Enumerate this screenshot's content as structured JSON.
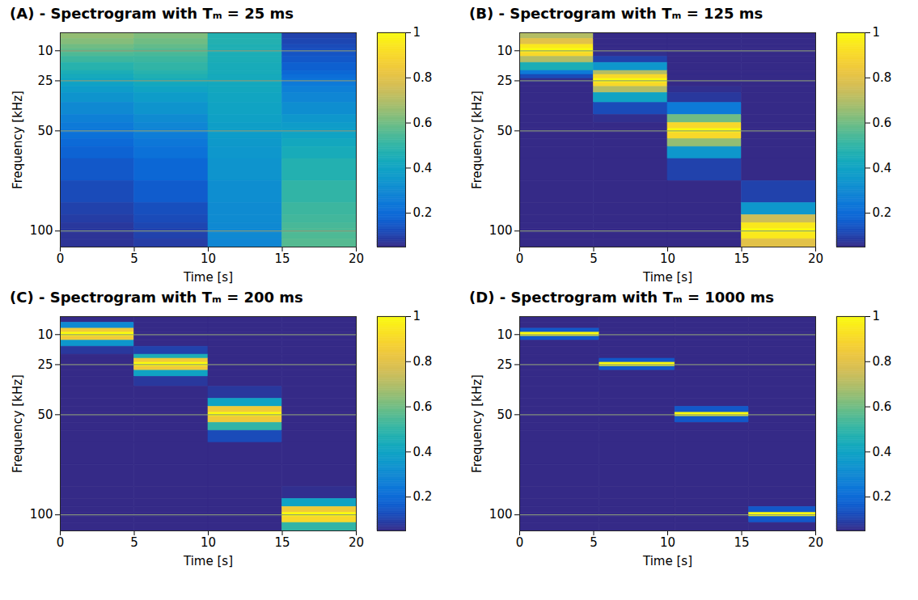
{
  "chart_data": [
    {
      "type": "heatmap",
      "title": "(A) - Spectrogram with Tₘ = 25 ms",
      "x_label": "Time [s]",
      "y_label": "Frequency [kHz]",
      "xlim": [
        0,
        20
      ],
      "xticks": [
        0,
        5,
        10,
        15,
        20
      ],
      "ylim": [
        108,
        1
      ],
      "yticks": [
        10,
        25,
        50,
        100
      ],
      "grid": "y",
      "x_edges": [
        0,
        5,
        10,
        15,
        20
      ],
      "y_edges": [
        1,
        4,
        7,
        9,
        11,
        13,
        16,
        20,
        22,
        24,
        26,
        28,
        31,
        36,
        42,
        46,
        49,
        51,
        54,
        58,
        64,
        75,
        86,
        92,
        96,
        99,
        101,
        104,
        108
      ],
      "cells": [
        [
          0.65,
          0.62,
          0.47,
          0.1
        ],
        [
          0.63,
          0.6,
          0.47,
          0.11
        ],
        [
          0.6,
          0.58,
          0.46,
          0.12
        ],
        [
          0.58,
          0.56,
          0.46,
          0.13
        ],
        [
          0.55,
          0.54,
          0.45,
          0.14
        ],
        [
          0.52,
          0.52,
          0.45,
          0.15
        ],
        [
          0.48,
          0.5,
          0.44,
          0.17
        ],
        [
          0.45,
          0.48,
          0.44,
          0.19
        ],
        [
          0.43,
          0.46,
          0.43,
          0.21
        ],
        [
          0.41,
          0.44,
          0.43,
          0.23
        ],
        [
          0.39,
          0.42,
          0.42,
          0.25
        ],
        [
          0.37,
          0.4,
          0.42,
          0.27
        ],
        [
          0.34,
          0.37,
          0.41,
          0.29
        ],
        [
          0.3,
          0.34,
          0.4,
          0.32
        ],
        [
          0.27,
          0.31,
          0.39,
          0.35
        ],
        [
          0.25,
          0.29,
          0.38,
          0.37
        ],
        [
          0.24,
          0.28,
          0.38,
          0.38
        ],
        [
          0.22,
          0.26,
          0.37,
          0.4
        ],
        [
          0.2,
          0.24,
          0.36,
          0.42
        ],
        [
          0.18,
          0.22,
          0.35,
          0.44
        ],
        [
          0.15,
          0.19,
          0.34,
          0.47
        ],
        [
          0.12,
          0.16,
          0.32,
          0.5
        ],
        [
          0.1,
          0.13,
          0.31,
          0.52
        ],
        [
          0.09,
          0.12,
          0.31,
          0.53
        ],
        [
          0.08,
          0.11,
          0.3,
          0.54
        ],
        [
          0.08,
          0.1,
          0.3,
          0.55
        ],
        [
          0.07,
          0.1,
          0.3,
          0.55
        ],
        [
          0.07,
          0.09,
          0.29,
          0.56
        ]
      ],
      "clim": [
        0.05,
        1
      ],
      "cticks": [
        0.2,
        0.4,
        0.6,
        0.8,
        1
      ]
    },
    {
      "type": "heatmap",
      "title": "(B) - Spectrogram with Tₘ = 125 ms",
      "x_label": "Time [s]",
      "y_label": "Frequency [kHz]",
      "xlim": [
        0,
        20
      ],
      "xticks": [
        0,
        5,
        10,
        15,
        20
      ],
      "ylim": [
        108,
        1
      ],
      "yticks": [
        10,
        25,
        50,
        100
      ],
      "grid": "y",
      "x_edges": [
        0,
        5,
        10,
        15,
        20
      ],
      "y_edges": [
        1,
        4,
        7,
        9,
        11,
        13,
        16,
        20,
        22,
        24,
        26,
        28,
        31,
        36,
        42,
        46,
        49,
        51,
        54,
        58,
        64,
        75,
        86,
        92,
        96,
        99,
        101,
        104,
        108
      ],
      "cells": [
        [
          0.7,
          0.05,
          0.05,
          0.05
        ],
        [
          0.8,
          0.05,
          0.05,
          0.05
        ],
        [
          0.95,
          0.05,
          0.05,
          0.05
        ],
        [
          1,
          0.05,
          0.05,
          0.05
        ],
        [
          0.9,
          0.06,
          0.05,
          0.05
        ],
        [
          0.7,
          0.1,
          0.05,
          0.05
        ],
        [
          0.45,
          0.35,
          0.05,
          0.05
        ],
        [
          0.25,
          0.7,
          0.05,
          0.05
        ],
        [
          0.12,
          0.9,
          0.05,
          0.05
        ],
        [
          0.06,
          1,
          0.05,
          0.05
        ],
        [
          0.05,
          0.9,
          0.05,
          0.05
        ],
        [
          0.05,
          0.7,
          0.06,
          0.05
        ],
        [
          0.05,
          0.4,
          0.08,
          0.05
        ],
        [
          0.05,
          0.12,
          0.25,
          0.05
        ],
        [
          0.05,
          0.06,
          0.6,
          0.05
        ],
        [
          0.05,
          0.05,
          0.9,
          0.05
        ],
        [
          0.05,
          0.05,
          1,
          0.05
        ],
        [
          0.05,
          0.05,
          0.9,
          0.05
        ],
        [
          0.05,
          0.05,
          0.65,
          0.05
        ],
        [
          0.05,
          0.05,
          0.35,
          0.05
        ],
        [
          0.05,
          0.05,
          0.1,
          0.05
        ],
        [
          0.05,
          0.05,
          0.05,
          0.1
        ],
        [
          0.05,
          0.05,
          0.05,
          0.35
        ],
        [
          0.05,
          0.05,
          0.05,
          0.75
        ],
        [
          0.05,
          0.05,
          0.05,
          0.95
        ],
        [
          0.05,
          0.05,
          0.05,
          1
        ],
        [
          0.05,
          0.05,
          0.05,
          0.95
        ],
        [
          0.05,
          0.05,
          0.05,
          0.8
        ]
      ],
      "clim": [
        0.05,
        1
      ],
      "cticks": [
        0.2,
        0.4,
        0.6,
        0.8,
        1
      ]
    },
    {
      "type": "heatmap",
      "title": "(C) - Spectrogram with Tₘ = 200 ms",
      "x_label": "Time [s]",
      "y_label": "Frequency [kHz]",
      "xlim": [
        0,
        20
      ],
      "xticks": [
        0,
        5,
        10,
        15,
        20
      ],
      "ylim": [
        108,
        1
      ],
      "yticks": [
        10,
        25,
        50,
        100
      ],
      "grid": "y",
      "x_edges": [
        0,
        5,
        10,
        15,
        20
      ],
      "y_edges": [
        1,
        4,
        7,
        9,
        11,
        13,
        16,
        20,
        22,
        24,
        26,
        28,
        31,
        36,
        42,
        46,
        49,
        51,
        54,
        58,
        64,
        75,
        86,
        92,
        96,
        99,
        101,
        104,
        108
      ],
      "cells": [
        [
          0.05,
          0.05,
          0.05,
          0.05
        ],
        [
          0.3,
          0.05,
          0.05,
          0.05
        ],
        [
          0.85,
          0.05,
          0.05,
          0.05
        ],
        [
          1,
          0.05,
          0.05,
          0.05
        ],
        [
          0.85,
          0.05,
          0.05,
          0.05
        ],
        [
          0.35,
          0.05,
          0.05,
          0.05
        ],
        [
          0.08,
          0.1,
          0.05,
          0.05
        ],
        [
          0.05,
          0.45,
          0.05,
          0.05
        ],
        [
          0.05,
          0.85,
          0.05,
          0.05
        ],
        [
          0.05,
          1,
          0.05,
          0.05
        ],
        [
          0.05,
          0.85,
          0.05,
          0.05
        ],
        [
          0.05,
          0.4,
          0.05,
          0.05
        ],
        [
          0.05,
          0.08,
          0.05,
          0.05
        ],
        [
          0.05,
          0.05,
          0.08,
          0.05
        ],
        [
          0.05,
          0.05,
          0.4,
          0.05
        ],
        [
          0.05,
          0.05,
          0.85,
          0.05
        ],
        [
          0.05,
          0.05,
          1,
          0.05
        ],
        [
          0.05,
          0.05,
          0.85,
          0.05
        ],
        [
          0.05,
          0.05,
          0.5,
          0.05
        ],
        [
          0.05,
          0.05,
          0.12,
          0.05
        ],
        [
          0.05,
          0.05,
          0.05,
          0.05
        ],
        [
          0.05,
          0.05,
          0.05,
          0.05
        ],
        [
          0.05,
          0.05,
          0.05,
          0.06
        ],
        [
          0.05,
          0.05,
          0.05,
          0.4
        ],
        [
          0.05,
          0.05,
          0.05,
          0.85
        ],
        [
          0.05,
          0.05,
          0.05,
          1
        ],
        [
          0.05,
          0.05,
          0.05,
          0.9
        ],
        [
          0.05,
          0.05,
          0.05,
          0.5
        ]
      ],
      "clim": [
        0.05,
        1
      ],
      "cticks": [
        0.2,
        0.4,
        0.6,
        0.8,
        1
      ]
    },
    {
      "type": "heatmap",
      "title": "(D) - Spectrogram with Tₘ = 1000 ms",
      "x_label": "Time [s]",
      "y_label": "Frequency [kHz]",
      "xlim": [
        0,
        20
      ],
      "xticks": [
        0,
        5,
        10,
        15,
        20
      ],
      "ylim": [
        108,
        1
      ],
      "yticks": [
        10,
        25,
        50,
        100
      ],
      "grid": "y",
      "x_edges": [
        0,
        5.4,
        10.5,
        15.5,
        20
      ],
      "y_edges": [
        1,
        4,
        7,
        9,
        11,
        13,
        16,
        20,
        22,
        24,
        26,
        28,
        31,
        36,
        42,
        46,
        49,
        51,
        54,
        58,
        64,
        75,
        86,
        92,
        96,
        99,
        101,
        104,
        108
      ],
      "cells": [
        [
          0.05,
          0.05,
          0.05,
          0.05
        ],
        [
          0.05,
          0.05,
          0.05,
          0.05
        ],
        [
          0.15,
          0.05,
          0.05,
          0.05
        ],
        [
          1,
          0.05,
          0.05,
          0.05
        ],
        [
          0.15,
          0.05,
          0.05,
          0.05
        ],
        [
          0.05,
          0.05,
          0.05,
          0.05
        ],
        [
          0.05,
          0.05,
          0.05,
          0.05
        ],
        [
          0.05,
          0.05,
          0.05,
          0.05
        ],
        [
          0.05,
          0.15,
          0.05,
          0.05
        ],
        [
          0.05,
          1,
          0.05,
          0.05
        ],
        [
          0.05,
          0.15,
          0.05,
          0.05
        ],
        [
          0.05,
          0.05,
          0.05,
          0.05
        ],
        [
          0.05,
          0.05,
          0.05,
          0.05
        ],
        [
          0.05,
          0.05,
          0.05,
          0.05
        ],
        [
          0.05,
          0.05,
          0.05,
          0.05
        ],
        [
          0.05,
          0.05,
          0.15,
          0.05
        ],
        [
          0.05,
          0.05,
          1,
          0.05
        ],
        [
          0.05,
          0.05,
          0.15,
          0.05
        ],
        [
          0.05,
          0.05,
          0.05,
          0.05
        ],
        [
          0.05,
          0.05,
          0.05,
          0.05
        ],
        [
          0.05,
          0.05,
          0.05,
          0.05
        ],
        [
          0.05,
          0.05,
          0.05,
          0.05
        ],
        [
          0.05,
          0.05,
          0.05,
          0.05
        ],
        [
          0.05,
          0.05,
          0.05,
          0.05
        ],
        [
          0.05,
          0.05,
          0.05,
          0.15
        ],
        [
          0.05,
          0.05,
          0.05,
          1
        ],
        [
          0.05,
          0.05,
          0.05,
          0.15
        ],
        [
          0.05,
          0.05,
          0.05,
          0.05
        ]
      ],
      "clim": [
        0.05,
        1
      ],
      "cticks": [
        0.2,
        0.4,
        0.6,
        0.8,
        1
      ]
    }
  ]
}
